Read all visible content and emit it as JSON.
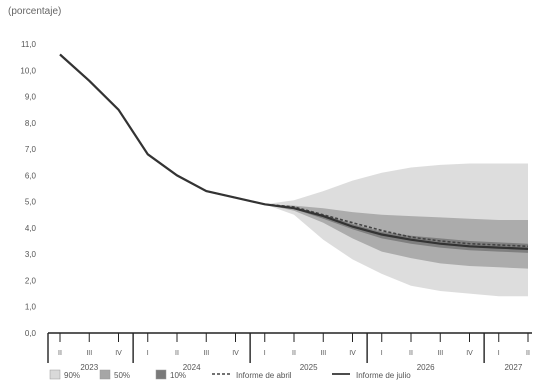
{
  "chart_data": {
    "type": "area",
    "unit_label": "(porcentaje)",
    "ylim": [
      0,
      11
    ],
    "yticks": [
      "0,0",
      "1,0",
      "2,0",
      "3,0",
      "4,0",
      "5,0",
      "6,0",
      "7,0",
      "8,0",
      "9,0",
      "10,0",
      "11,0"
    ],
    "grid": false,
    "x_quarters": [
      {
        "year": "2023",
        "quarter": "II"
      },
      {
        "year": "2023",
        "quarter": "III"
      },
      {
        "year": "2023",
        "quarter": "IV"
      },
      {
        "year": "2024",
        "quarter": "I"
      },
      {
        "year": "2024",
        "quarter": "II"
      },
      {
        "year": "2024",
        "quarter": "III"
      },
      {
        "year": "2024",
        "quarter": "IV"
      },
      {
        "year": "2025",
        "quarter": "I"
      },
      {
        "year": "2025",
        "quarter": "II"
      },
      {
        "year": "2025",
        "quarter": "III"
      },
      {
        "year": "2025",
        "quarter": "IV"
      },
      {
        "year": "2026",
        "quarter": "I"
      },
      {
        "year": "2026",
        "quarter": "II"
      },
      {
        "year": "2026",
        "quarter": "III"
      },
      {
        "year": "2026",
        "quarter": "IV"
      },
      {
        "year": "2027",
        "quarter": "I"
      },
      {
        "year": "2027",
        "quarter": "II"
      }
    ],
    "years": [
      "2023",
      "2024",
      "2025",
      "2026",
      "2027"
    ],
    "series": [
      {
        "name": "Informe de abril",
        "style": "dashed",
        "values": [
          10.6,
          9.6,
          8.5,
          6.8,
          6.0,
          5.4,
          5.15,
          4.9,
          4.8,
          4.5,
          4.2,
          3.9,
          3.65,
          3.5,
          3.4,
          3.35,
          3.3
        ]
      },
      {
        "name": "Informe de julio",
        "style": "solid",
        "values": [
          10.6,
          9.6,
          8.5,
          6.8,
          6.0,
          5.4,
          5.15,
          4.9,
          4.75,
          4.45,
          4.05,
          3.75,
          3.55,
          3.4,
          3.3,
          3.25,
          3.2
        ]
      }
    ],
    "fan_bands": [
      {
        "name": "90%",
        "color": "#d9d9d9",
        "upper": [
          null,
          null,
          null,
          null,
          null,
          null,
          null,
          4.9,
          5.05,
          5.4,
          5.8,
          6.1,
          6.3,
          6.4,
          6.45,
          6.45,
          6.45
        ],
        "lower": [
          null,
          null,
          null,
          null,
          null,
          null,
          null,
          4.9,
          4.5,
          3.55,
          2.8,
          2.25,
          1.8,
          1.6,
          1.5,
          1.4,
          1.4
        ]
      },
      {
        "name": "50%",
        "color": "#a6a6a6",
        "upper": [
          null,
          null,
          null,
          null,
          null,
          null,
          null,
          4.9,
          4.85,
          4.75,
          4.6,
          4.5,
          4.45,
          4.4,
          4.35,
          4.3,
          4.3
        ],
        "lower": [
          null,
          null,
          null,
          null,
          null,
          null,
          null,
          4.9,
          4.65,
          4.2,
          3.6,
          3.1,
          2.85,
          2.65,
          2.55,
          2.5,
          2.45
        ]
      },
      {
        "name": "10%",
        "color": "#7a7a7a",
        "upper": [
          null,
          null,
          null,
          null,
          null,
          null,
          null,
          4.9,
          4.78,
          4.5,
          4.15,
          3.85,
          3.7,
          3.6,
          3.5,
          3.45,
          3.4
        ],
        "lower": [
          null,
          null,
          null,
          null,
          null,
          null,
          null,
          4.9,
          4.72,
          4.35,
          3.95,
          3.6,
          3.4,
          3.25,
          3.15,
          3.1,
          3.05
        ]
      }
    ],
    "legend": {
      "placement": "bottom",
      "items": [
        {
          "label": "90%",
          "kind": "band",
          "color": "#d9d9d9"
        },
        {
          "label": "50%",
          "kind": "band",
          "color": "#a6a6a6"
        },
        {
          "label": "10%",
          "kind": "band",
          "color": "#7a7a7a"
        },
        {
          "label": "Informe de abril",
          "kind": "dashed",
          "color": "#444444"
        },
        {
          "label": "Informe de julio",
          "kind": "solid",
          "color": "#333333"
        }
      ]
    }
  }
}
